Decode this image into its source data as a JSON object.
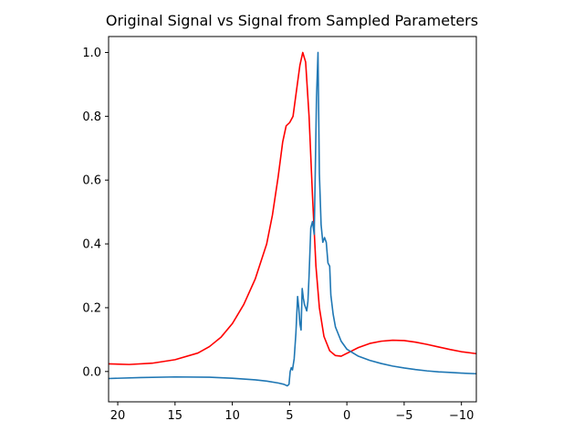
{
  "chart_data": {
    "type": "line",
    "title": "Original Signal vs Signal from Sampled Parameters",
    "xlabel": "",
    "ylabel": "",
    "x_reversed": true,
    "xlim": [
      20.8,
      -11.3
    ],
    "ylim": [
      -0.095,
      1.05
    ],
    "grid": false,
    "legend": "none",
    "x_ticks": [
      20,
      15,
      10,
      5,
      0,
      -5,
      -10
    ],
    "x_tick_labels": [
      "20",
      "15",
      "10",
      "5",
      "0",
      "−5",
      "−10"
    ],
    "y_ticks": [
      0.0,
      0.2,
      0.4,
      0.6,
      0.8,
      1.0
    ],
    "y_tick_labels": [
      "0.0",
      "0.2",
      "0.4",
      "0.6",
      "0.8",
      "1.0"
    ],
    "series": [
      {
        "color": "#ff0000",
        "points": [
          [
            20.8,
            0.024
          ],
          [
            19.0,
            0.022
          ],
          [
            17.0,
            0.026
          ],
          [
            15.0,
            0.037
          ],
          [
            13.0,
            0.058
          ],
          [
            12.0,
            0.078
          ],
          [
            11.0,
            0.107
          ],
          [
            10.0,
            0.15
          ],
          [
            9.0,
            0.21
          ],
          [
            8.0,
            0.29
          ],
          [
            7.0,
            0.4
          ],
          [
            6.5,
            0.49
          ],
          [
            6.0,
            0.61
          ],
          [
            5.6,
            0.72
          ],
          [
            5.3,
            0.77
          ],
          [
            5.0,
            0.78
          ],
          [
            4.7,
            0.8
          ],
          [
            4.4,
            0.88
          ],
          [
            4.1,
            0.96
          ],
          [
            3.85,
            1.0
          ],
          [
            3.6,
            0.97
          ],
          [
            3.3,
            0.8
          ],
          [
            3.0,
            0.55
          ],
          [
            2.7,
            0.33
          ],
          [
            2.4,
            0.2
          ],
          [
            2.0,
            0.11
          ],
          [
            1.5,
            0.065
          ],
          [
            1.0,
            0.05
          ],
          [
            0.5,
            0.048
          ],
          [
            0.0,
            0.057
          ],
          [
            -1.0,
            0.075
          ],
          [
            -2.0,
            0.088
          ],
          [
            -3.0,
            0.095
          ],
          [
            -4.0,
            0.098
          ],
          [
            -5.0,
            0.097
          ],
          [
            -6.0,
            0.092
          ],
          [
            -7.0,
            0.085
          ],
          [
            -8.0,
            0.077
          ],
          [
            -9.0,
            0.069
          ],
          [
            -10.0,
            0.062
          ],
          [
            -11.3,
            0.056
          ]
        ]
      },
      {
        "color": "#1f77b4",
        "points": [
          [
            20.8,
            -0.022
          ],
          [
            18.0,
            -0.019
          ],
          [
            15.0,
            -0.017
          ],
          [
            12.0,
            -0.018
          ],
          [
            10.0,
            -0.021
          ],
          [
            8.0,
            -0.026
          ],
          [
            7.0,
            -0.03
          ],
          [
            6.0,
            -0.036
          ],
          [
            5.5,
            -0.04
          ],
          [
            5.2,
            -0.045
          ],
          [
            5.05,
            -0.04
          ],
          [
            4.95,
            0.0
          ],
          [
            4.85,
            0.012
          ],
          [
            4.75,
            0.005
          ],
          [
            4.6,
            0.04
          ],
          [
            4.45,
            0.12
          ],
          [
            4.3,
            0.235
          ],
          [
            4.2,
            0.2
          ],
          [
            4.1,
            0.15
          ],
          [
            4.0,
            0.13
          ],
          [
            3.9,
            0.26
          ],
          [
            3.8,
            0.23
          ],
          [
            3.7,
            0.21
          ],
          [
            3.5,
            0.19
          ],
          [
            3.4,
            0.22
          ],
          [
            3.3,
            0.3
          ],
          [
            3.15,
            0.45
          ],
          [
            3.0,
            0.47
          ],
          [
            2.85,
            0.43
          ],
          [
            2.65,
            0.86
          ],
          [
            2.52,
            1.0
          ],
          [
            2.4,
            0.62
          ],
          [
            2.25,
            0.46
          ],
          [
            2.1,
            0.405
          ],
          [
            1.95,
            0.42
          ],
          [
            1.8,
            0.405
          ],
          [
            1.65,
            0.34
          ],
          [
            1.5,
            0.33
          ],
          [
            1.4,
            0.24
          ],
          [
            1.2,
            0.18
          ],
          [
            1.0,
            0.14
          ],
          [
            0.5,
            0.095
          ],
          [
            0.0,
            0.07
          ],
          [
            -1.0,
            0.048
          ],
          [
            -2.0,
            0.035
          ],
          [
            -3.0,
            0.025
          ],
          [
            -4.0,
            0.017
          ],
          [
            -5.0,
            0.011
          ],
          [
            -6.0,
            0.006
          ],
          [
            -7.0,
            0.002
          ],
          [
            -8.0,
            -0.001
          ],
          [
            -9.0,
            -0.003
          ],
          [
            -10.0,
            -0.005
          ],
          [
            -11.3,
            -0.007
          ]
        ]
      }
    ]
  }
}
